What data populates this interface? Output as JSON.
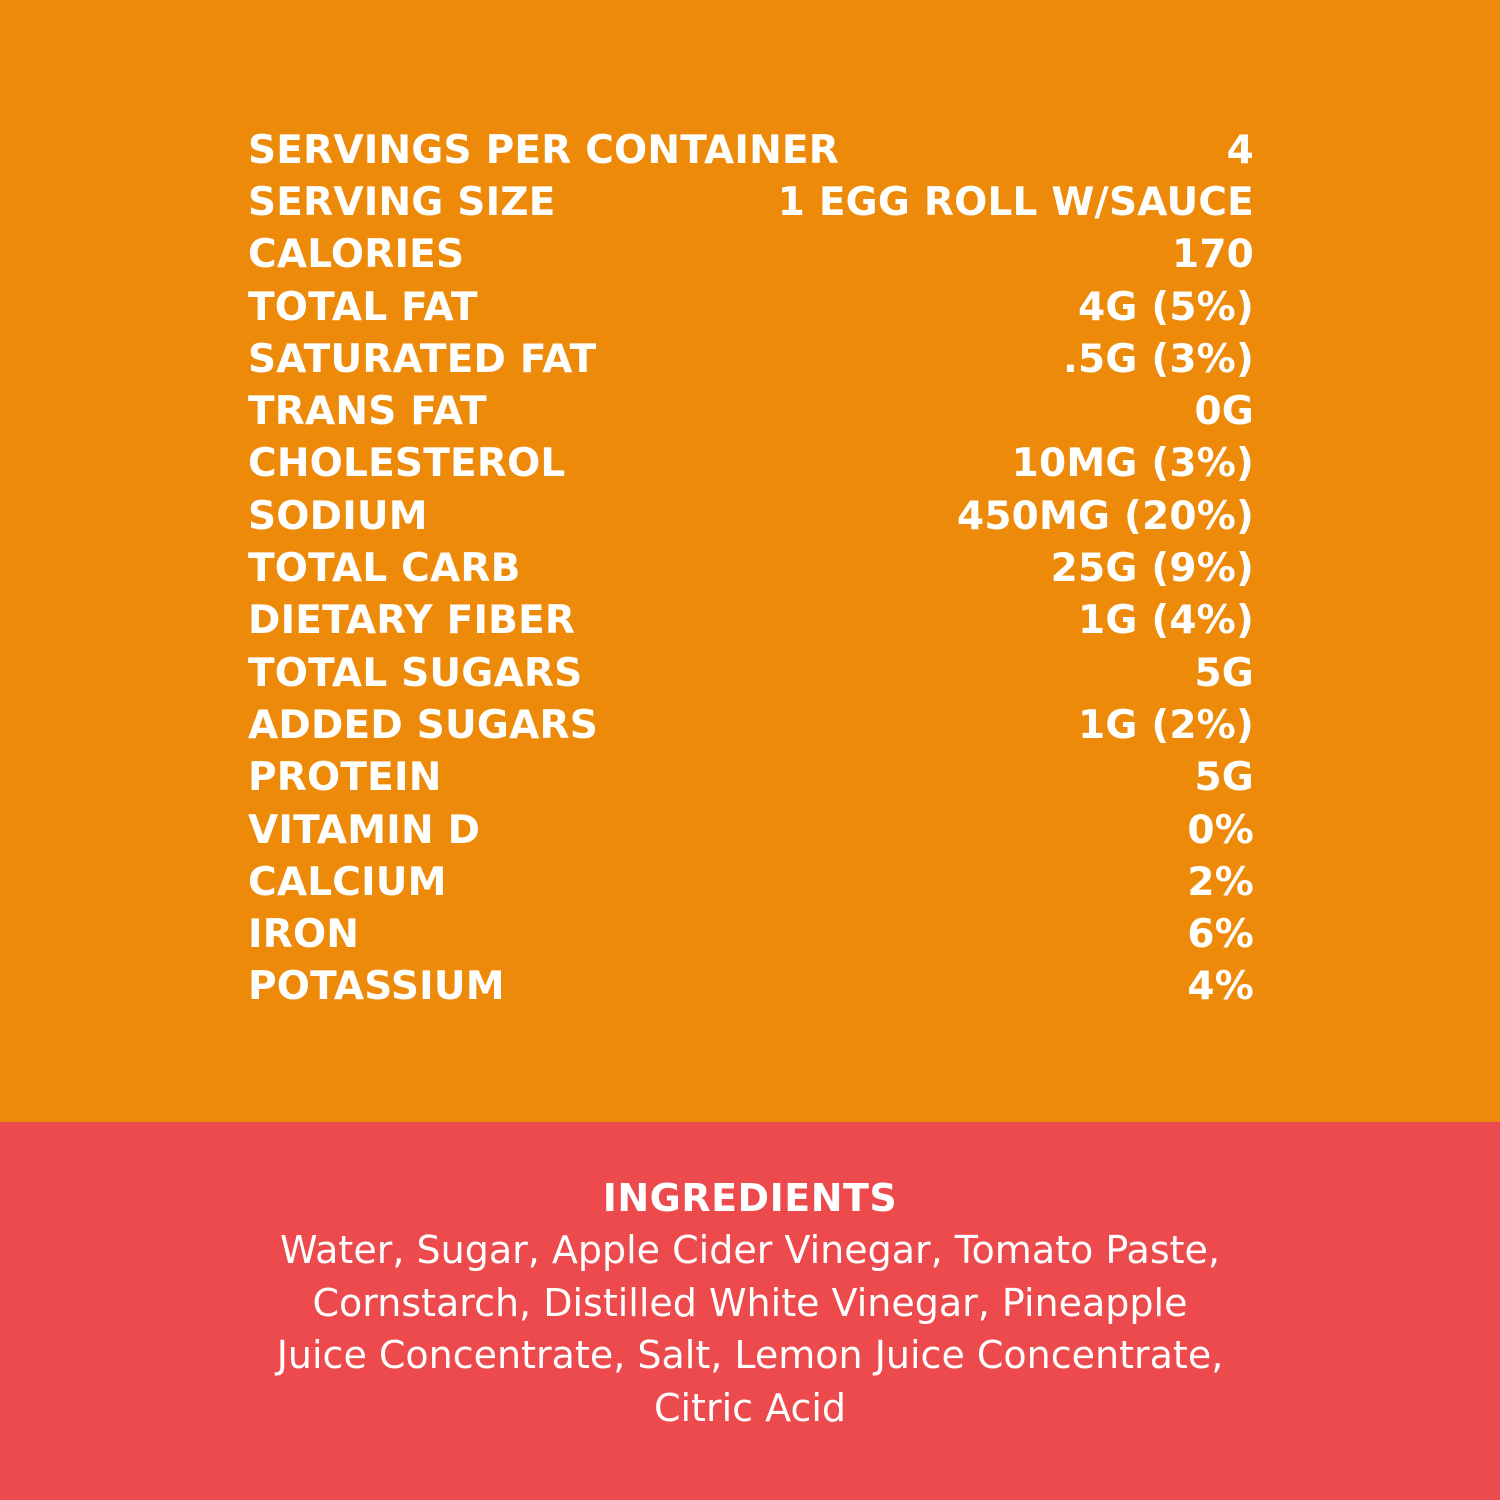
{
  "colors": {
    "top_background": "#EE8A09",
    "bottom_background": "#EC4A4C",
    "text": "#FFFFFF"
  },
  "nutrition": {
    "rows": [
      {
        "label": "SERVINGS PER CONTAINER",
        "value": "4"
      },
      {
        "label": "SERVING SIZE",
        "value": "1 EGG ROLL W/SAUCE"
      },
      {
        "label": "CALORIES",
        "value": "170"
      },
      {
        "label": "TOTAL FAT",
        "value": "4G (5%)"
      },
      {
        "label": "SATURATED FAT",
        "value": ".5G (3%)"
      },
      {
        "label": "TRANS FAT",
        "value": "0G"
      },
      {
        "label": "CHOLESTEROL",
        "value": "10MG (3%)"
      },
      {
        "label": "SODIUM",
        "value": "450MG (20%)"
      },
      {
        "label": "TOTAL CARB",
        "value": "25G (9%)"
      },
      {
        "label": "DIETARY FIBER",
        "value": "1G (4%)"
      },
      {
        "label": "TOTAL SUGARS",
        "value": "5G"
      },
      {
        "label": "ADDED SUGARS",
        "value": "1G (2%)"
      },
      {
        "label": "PROTEIN",
        "value": "5G"
      },
      {
        "label": "VITAMIN D",
        "value": "0%"
      },
      {
        "label": "CALCIUM",
        "value": "2%"
      },
      {
        "label": "IRON",
        "value": "6%"
      },
      {
        "label": "POTASSIUM",
        "value": "4%"
      }
    ]
  },
  "ingredients": {
    "title": "INGREDIENTS",
    "text": "Water, Sugar, Apple Cider Vinegar, Tomato Paste, Cornstarch, Distilled White Vinegar, Pineapple Juice Concentrate, Salt, Lemon Juice Concentrate, Citric Acid"
  }
}
